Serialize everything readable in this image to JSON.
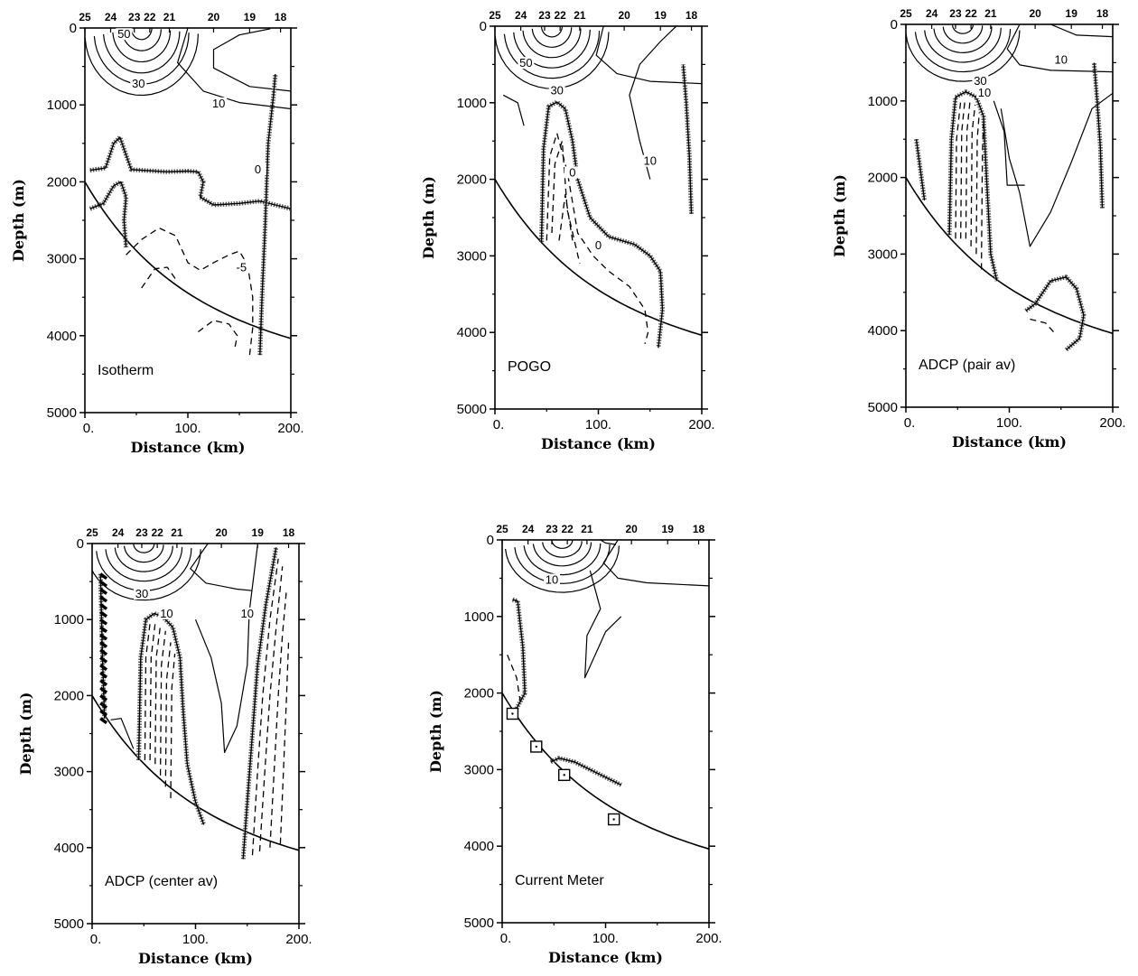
{
  "chart_data": [
    {
      "type": "contour",
      "label": "Isotherm",
      "xlabel": "Distance (km)",
      "ylabel": "Depth (m)",
      "xlim": [
        0,
        200
      ],
      "ylim": [
        0,
        5000
      ],
      "x_ticks": [
        "0.",
        "100.",
        "200."
      ],
      "y_ticks": [
        "0",
        "1000",
        "2000",
        "3000",
        "4000",
        "5000"
      ],
      "stations": [
        "25",
        "24",
        "23",
        "22",
        "21",
        "20",
        "19",
        "18"
      ],
      "station_x": [
        0,
        25,
        48,
        63,
        82,
        125,
        160,
        190
      ],
      "contour_labels": [
        {
          "text": "50",
          "x": 38,
          "y": 120
        },
        {
          "text": "30",
          "x": 52,
          "y": 760
        },
        {
          "text": "10",
          "x": 130,
          "y": 1020
        },
        {
          "text": "0",
          "x": 168,
          "y": 1880
        },
        {
          "text": "-5",
          "x": 152,
          "y": 3150
        }
      ]
    },
    {
      "type": "contour",
      "label": "POGO",
      "xlabel": "Distance (km)",
      "ylabel": "Depth (m)",
      "xlim": [
        0,
        200
      ],
      "ylim": [
        0,
        5000
      ],
      "x_ticks": [
        "0.",
        "100.",
        "200."
      ],
      "y_ticks": [
        "0",
        "1000",
        "2000",
        "3000",
        "4000",
        "5000"
      ],
      "stations": [
        "25",
        "24",
        "23",
        "22",
        "21",
        "20",
        "19",
        "18"
      ],
      "station_x": [
        0,
        25,
        48,
        63,
        82,
        125,
        160,
        190
      ],
      "contour_labels": [
        {
          "text": "50",
          "x": 30,
          "y": 520
        },
        {
          "text": "30",
          "x": 60,
          "y": 880
        },
        {
          "text": "10",
          "x": 150,
          "y": 1800
        },
        {
          "text": "0",
          "x": 75,
          "y": 1950
        },
        {
          "text": "0",
          "x": 100,
          "y": 2900
        }
      ]
    },
    {
      "type": "contour",
      "label": "ADCP (pair av)",
      "xlabel": "Distance (km)",
      "ylabel": "Depth (m)",
      "xlim": [
        0,
        200
      ],
      "ylim": [
        0,
        5000
      ],
      "x_ticks": [
        "0.",
        "100.",
        "200."
      ],
      "y_ticks": [
        "0",
        "1000",
        "2000",
        "3000",
        "4000",
        "5000"
      ],
      "stations": [
        "25",
        "24",
        "23",
        "22",
        "21",
        "20",
        "19",
        "18"
      ],
      "station_x": [
        0,
        25,
        48,
        63,
        82,
        125,
        160,
        190
      ],
      "contour_labels": [
        {
          "text": "10",
          "x": 150,
          "y": 500
        },
        {
          "text": "30",
          "x": 72,
          "y": 780
        },
        {
          "text": "10",
          "x": 76,
          "y": 930
        }
      ]
    },
    {
      "type": "contour",
      "label": "ADCP (center av)",
      "xlabel": "Distance (km)",
      "ylabel": "Depth (m)",
      "xlim": [
        0,
        200
      ],
      "ylim": [
        0,
        5000
      ],
      "x_ticks": [
        "0.",
        "100.",
        "200."
      ],
      "y_ticks": [
        "0",
        "1000",
        "2000",
        "3000",
        "4000",
        "5000"
      ],
      "stations": [
        "25",
        "24",
        "23",
        "22",
        "21",
        "20",
        "19",
        "18"
      ],
      "station_x": [
        0,
        25,
        48,
        63,
        82,
        125,
        160,
        190
      ],
      "contour_labels": [
        {
          "text": "30",
          "x": 48,
          "y": 700
        },
        {
          "text": "10",
          "x": 72,
          "y": 960
        },
        {
          "text": "10",
          "x": 150,
          "y": 960
        }
      ]
    },
    {
      "type": "contour",
      "label": "Current Meter",
      "xlabel": "Distance (km)",
      "ylabel": "Depth (m)",
      "xlim": [
        0,
        200
      ],
      "ylim": [
        0,
        5000
      ],
      "x_ticks": [
        "0.",
        "100.",
        "200."
      ],
      "y_ticks": [
        "0",
        "1000",
        "2000",
        "3000",
        "4000",
        "5000"
      ],
      "stations": [
        "25",
        "24",
        "23",
        "22",
        "21",
        "20",
        "19",
        "18"
      ],
      "station_x": [
        0,
        25,
        48,
        63,
        82,
        125,
        160,
        190
      ],
      "contour_labels": [
        {
          "text": "10",
          "x": 48,
          "y": 560
        }
      ],
      "meters": [
        {
          "x": 10,
          "y": 2270
        },
        {
          "x": 33,
          "y": 2700
        },
        {
          "x": 60,
          "y": 3070
        },
        {
          "x": 108,
          "y": 3650
        }
      ]
    }
  ]
}
